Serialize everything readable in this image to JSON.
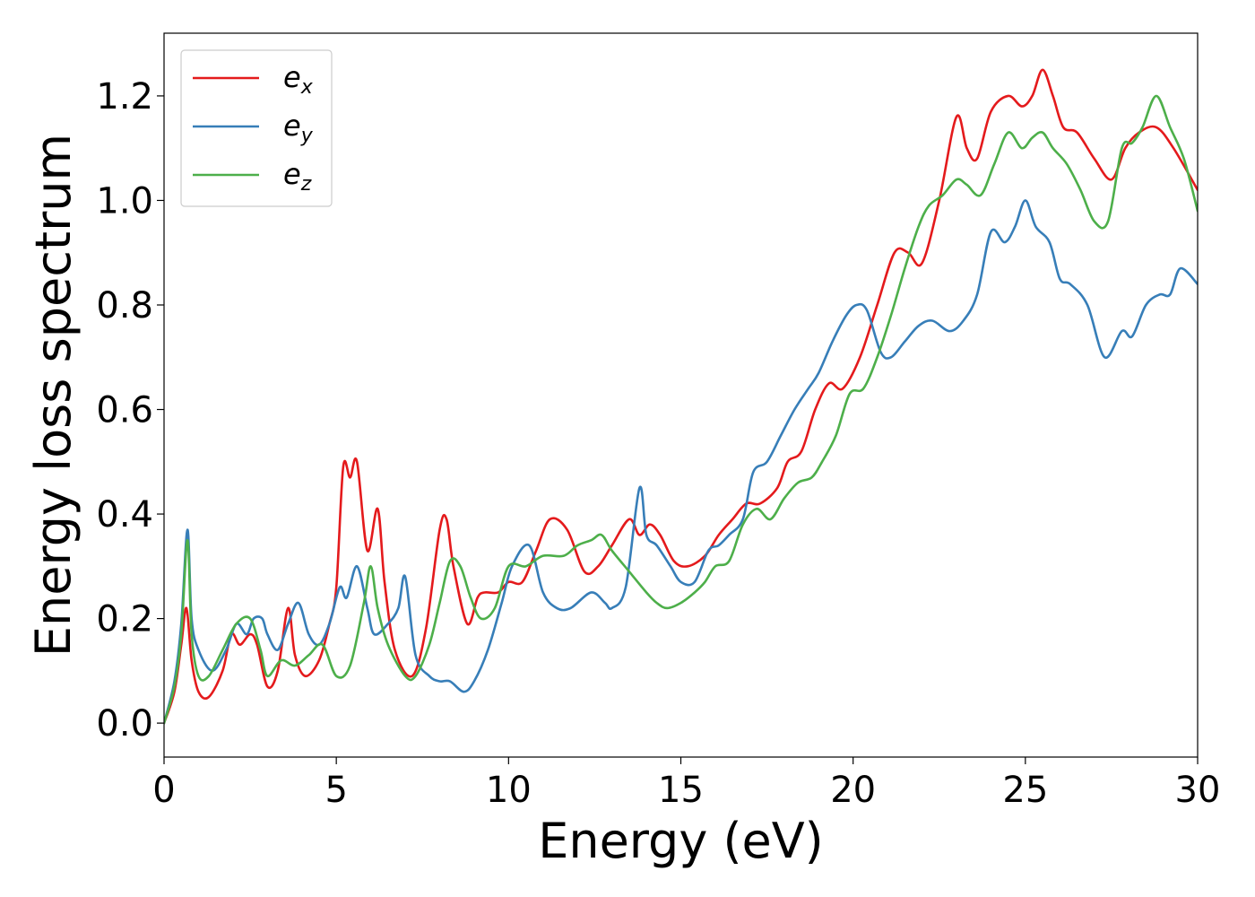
{
  "chart_data": {
    "type": "line",
    "title": "",
    "xlabel": "Energy (eV)",
    "ylabel": "Energy loss spectrum",
    "xlim": [
      0,
      30
    ],
    "ylim": [
      -0.065,
      1.32
    ],
    "x_ticks": [
      0,
      5,
      10,
      15,
      20,
      25,
      30
    ],
    "x_tick_labels": [
      "0",
      "5",
      "10",
      "15",
      "20",
      "25",
      "30"
    ],
    "y_ticks": [
      0.0,
      0.2,
      0.4,
      0.6,
      0.8,
      1.0,
      1.2
    ],
    "y_tick_labels": [
      "0.0",
      "0.2",
      "0.4",
      "0.6",
      "0.8",
      "1.0",
      "1.2"
    ],
    "grid": false,
    "legend_position": "top-left",
    "colors": {
      "e_x": "#e41a1c",
      "e_y": "#377eb8",
      "e_z": "#4daf4a"
    },
    "series": [
      {
        "name": "e",
        "subscript": "x",
        "color": "#e41a1c",
        "x": [
          0,
          0.3,
          0.5,
          0.65,
          0.8,
          1.0,
          1.3,
          1.7,
          1.95,
          2.2,
          2.5,
          2.7,
          3.0,
          3.3,
          3.6,
          3.8,
          4.1,
          4.5,
          4.8,
          5.0,
          5.2,
          5.4,
          5.6,
          5.9,
          6.2,
          6.4,
          6.7,
          7.2,
          7.6,
          8.0,
          8.2,
          8.4,
          8.8,
          9.1,
          9.3,
          9.7,
          10.0,
          10.4,
          10.8,
          11.2,
          11.7,
          12.2,
          12.6,
          13.0,
          13.5,
          13.8,
          14.1,
          14.4,
          14.8,
          15.2,
          15.7,
          16.1,
          16.5,
          16.9,
          17.3,
          17.8,
          18.1,
          18.5,
          18.9,
          19.3,
          19.7,
          20.2,
          20.7,
          21.2,
          21.6,
          22.0,
          22.5,
          23.0,
          23.3,
          23.6,
          24.0,
          24.5,
          24.9,
          25.2,
          25.5,
          25.8,
          26.1,
          26.5,
          27.0,
          27.5,
          27.9,
          28.3,
          28.8,
          29.3,
          30.0
        ],
        "values": [
          0.0,
          0.06,
          0.15,
          0.22,
          0.12,
          0.06,
          0.05,
          0.1,
          0.17,
          0.15,
          0.17,
          0.15,
          0.07,
          0.1,
          0.22,
          0.13,
          0.09,
          0.12,
          0.19,
          0.26,
          0.49,
          0.47,
          0.5,
          0.33,
          0.41,
          0.27,
          0.14,
          0.09,
          0.18,
          0.37,
          0.39,
          0.3,
          0.19,
          0.24,
          0.25,
          0.25,
          0.27,
          0.27,
          0.33,
          0.39,
          0.37,
          0.29,
          0.3,
          0.34,
          0.39,
          0.36,
          0.38,
          0.36,
          0.31,
          0.3,
          0.32,
          0.36,
          0.39,
          0.42,
          0.42,
          0.45,
          0.5,
          0.52,
          0.6,
          0.65,
          0.64,
          0.7,
          0.8,
          0.9,
          0.9,
          0.88,
          1.0,
          1.16,
          1.1,
          1.08,
          1.17,
          1.2,
          1.18,
          1.2,
          1.25,
          1.2,
          1.14,
          1.13,
          1.08,
          1.04,
          1.1,
          1.13,
          1.14,
          1.1,
          1.02
        ]
      },
      {
        "name": "e",
        "subscript": "y",
        "color": "#377eb8",
        "x": [
          0,
          0.3,
          0.5,
          0.68,
          0.8,
          1.0,
          1.4,
          1.8,
          2.1,
          2.4,
          2.6,
          2.85,
          3.0,
          3.3,
          3.6,
          3.9,
          4.2,
          4.5,
          4.8,
          5.1,
          5.3,
          5.6,
          5.9,
          6.1,
          6.5,
          6.8,
          7.0,
          7.3,
          7.7,
          8.0,
          8.3,
          8.7,
          9.0,
          9.4,
          9.8,
          10.1,
          10.6,
          11.0,
          11.4,
          11.8,
          12.4,
          12.8,
          13.0,
          13.4,
          13.8,
          14.0,
          14.3,
          14.7,
          15.0,
          15.4,
          15.8,
          16.1,
          16.4,
          16.8,
          17.1,
          17.5,
          17.9,
          18.3,
          18.7,
          19.0,
          19.4,
          19.8,
          20.1,
          20.4,
          20.8,
          21.1,
          21.5,
          21.9,
          22.3,
          22.8,
          23.2,
          23.6,
          24.0,
          24.4,
          24.7,
          25.0,
          25.3,
          25.7,
          26.0,
          26.3,
          26.8,
          27.3,
          27.8,
          28.1,
          28.5,
          28.9,
          29.2,
          29.5,
          30.0
        ],
        "values": [
          0.0,
          0.08,
          0.19,
          0.37,
          0.2,
          0.14,
          0.1,
          0.14,
          0.19,
          0.17,
          0.2,
          0.2,
          0.17,
          0.14,
          0.19,
          0.23,
          0.17,
          0.15,
          0.19,
          0.26,
          0.24,
          0.3,
          0.22,
          0.17,
          0.19,
          0.22,
          0.28,
          0.13,
          0.09,
          0.08,
          0.08,
          0.06,
          0.08,
          0.14,
          0.23,
          0.3,
          0.34,
          0.25,
          0.22,
          0.22,
          0.25,
          0.23,
          0.22,
          0.26,
          0.45,
          0.36,
          0.34,
          0.3,
          0.27,
          0.27,
          0.33,
          0.34,
          0.36,
          0.39,
          0.48,
          0.5,
          0.55,
          0.6,
          0.64,
          0.67,
          0.73,
          0.78,
          0.8,
          0.79,
          0.71,
          0.7,
          0.73,
          0.76,
          0.77,
          0.75,
          0.77,
          0.82,
          0.94,
          0.92,
          0.95,
          1.0,
          0.95,
          0.92,
          0.85,
          0.84,
          0.8,
          0.7,
          0.75,
          0.74,
          0.8,
          0.82,
          0.82,
          0.87,
          0.84
        ]
      },
      {
        "name": "e",
        "subscript": "z",
        "color": "#4daf4a",
        "x": [
          0,
          0.3,
          0.5,
          0.68,
          0.8,
          1.0,
          1.3,
          1.7,
          2.1,
          2.5,
          2.8,
          3.0,
          3.4,
          3.8,
          4.2,
          4.6,
          5.0,
          5.4,
          5.8,
          6.0,
          6.2,
          6.5,
          7.0,
          7.3,
          7.7,
          8.0,
          8.3,
          8.6,
          8.9,
          9.2,
          9.6,
          10.0,
          10.5,
          11.0,
          11.6,
          12.0,
          12.4,
          12.7,
          13.0,
          13.5,
          14.0,
          14.3,
          14.6,
          15.0,
          15.4,
          15.7,
          16.0,
          16.4,
          16.8,
          17.2,
          17.6,
          18.0,
          18.4,
          18.8,
          19.1,
          19.5,
          19.9,
          20.3,
          20.7,
          21.1,
          21.5,
          21.9,
          22.2,
          22.6,
          23.0,
          23.3,
          23.7,
          24.1,
          24.5,
          24.9,
          25.2,
          25.5,
          25.8,
          26.2,
          26.6,
          27.0,
          27.4,
          27.8,
          28.1,
          28.4,
          28.8,
          29.2,
          29.6,
          30.0
        ],
        "values": [
          0.0,
          0.07,
          0.17,
          0.35,
          0.17,
          0.09,
          0.09,
          0.14,
          0.19,
          0.2,
          0.14,
          0.09,
          0.12,
          0.11,
          0.13,
          0.15,
          0.09,
          0.11,
          0.23,
          0.3,
          0.22,
          0.15,
          0.09,
          0.09,
          0.15,
          0.23,
          0.31,
          0.3,
          0.24,
          0.2,
          0.22,
          0.3,
          0.3,
          0.32,
          0.32,
          0.34,
          0.35,
          0.36,
          0.33,
          0.29,
          0.25,
          0.23,
          0.22,
          0.23,
          0.25,
          0.27,
          0.3,
          0.31,
          0.38,
          0.41,
          0.39,
          0.43,
          0.46,
          0.47,
          0.5,
          0.55,
          0.63,
          0.64,
          0.7,
          0.78,
          0.87,
          0.95,
          0.99,
          1.01,
          1.04,
          1.03,
          1.01,
          1.07,
          1.13,
          1.1,
          1.12,
          1.13,
          1.1,
          1.07,
          1.02,
          0.96,
          0.96,
          1.1,
          1.11,
          1.14,
          1.2,
          1.14,
          1.08,
          0.98
        ]
      }
    ]
  }
}
